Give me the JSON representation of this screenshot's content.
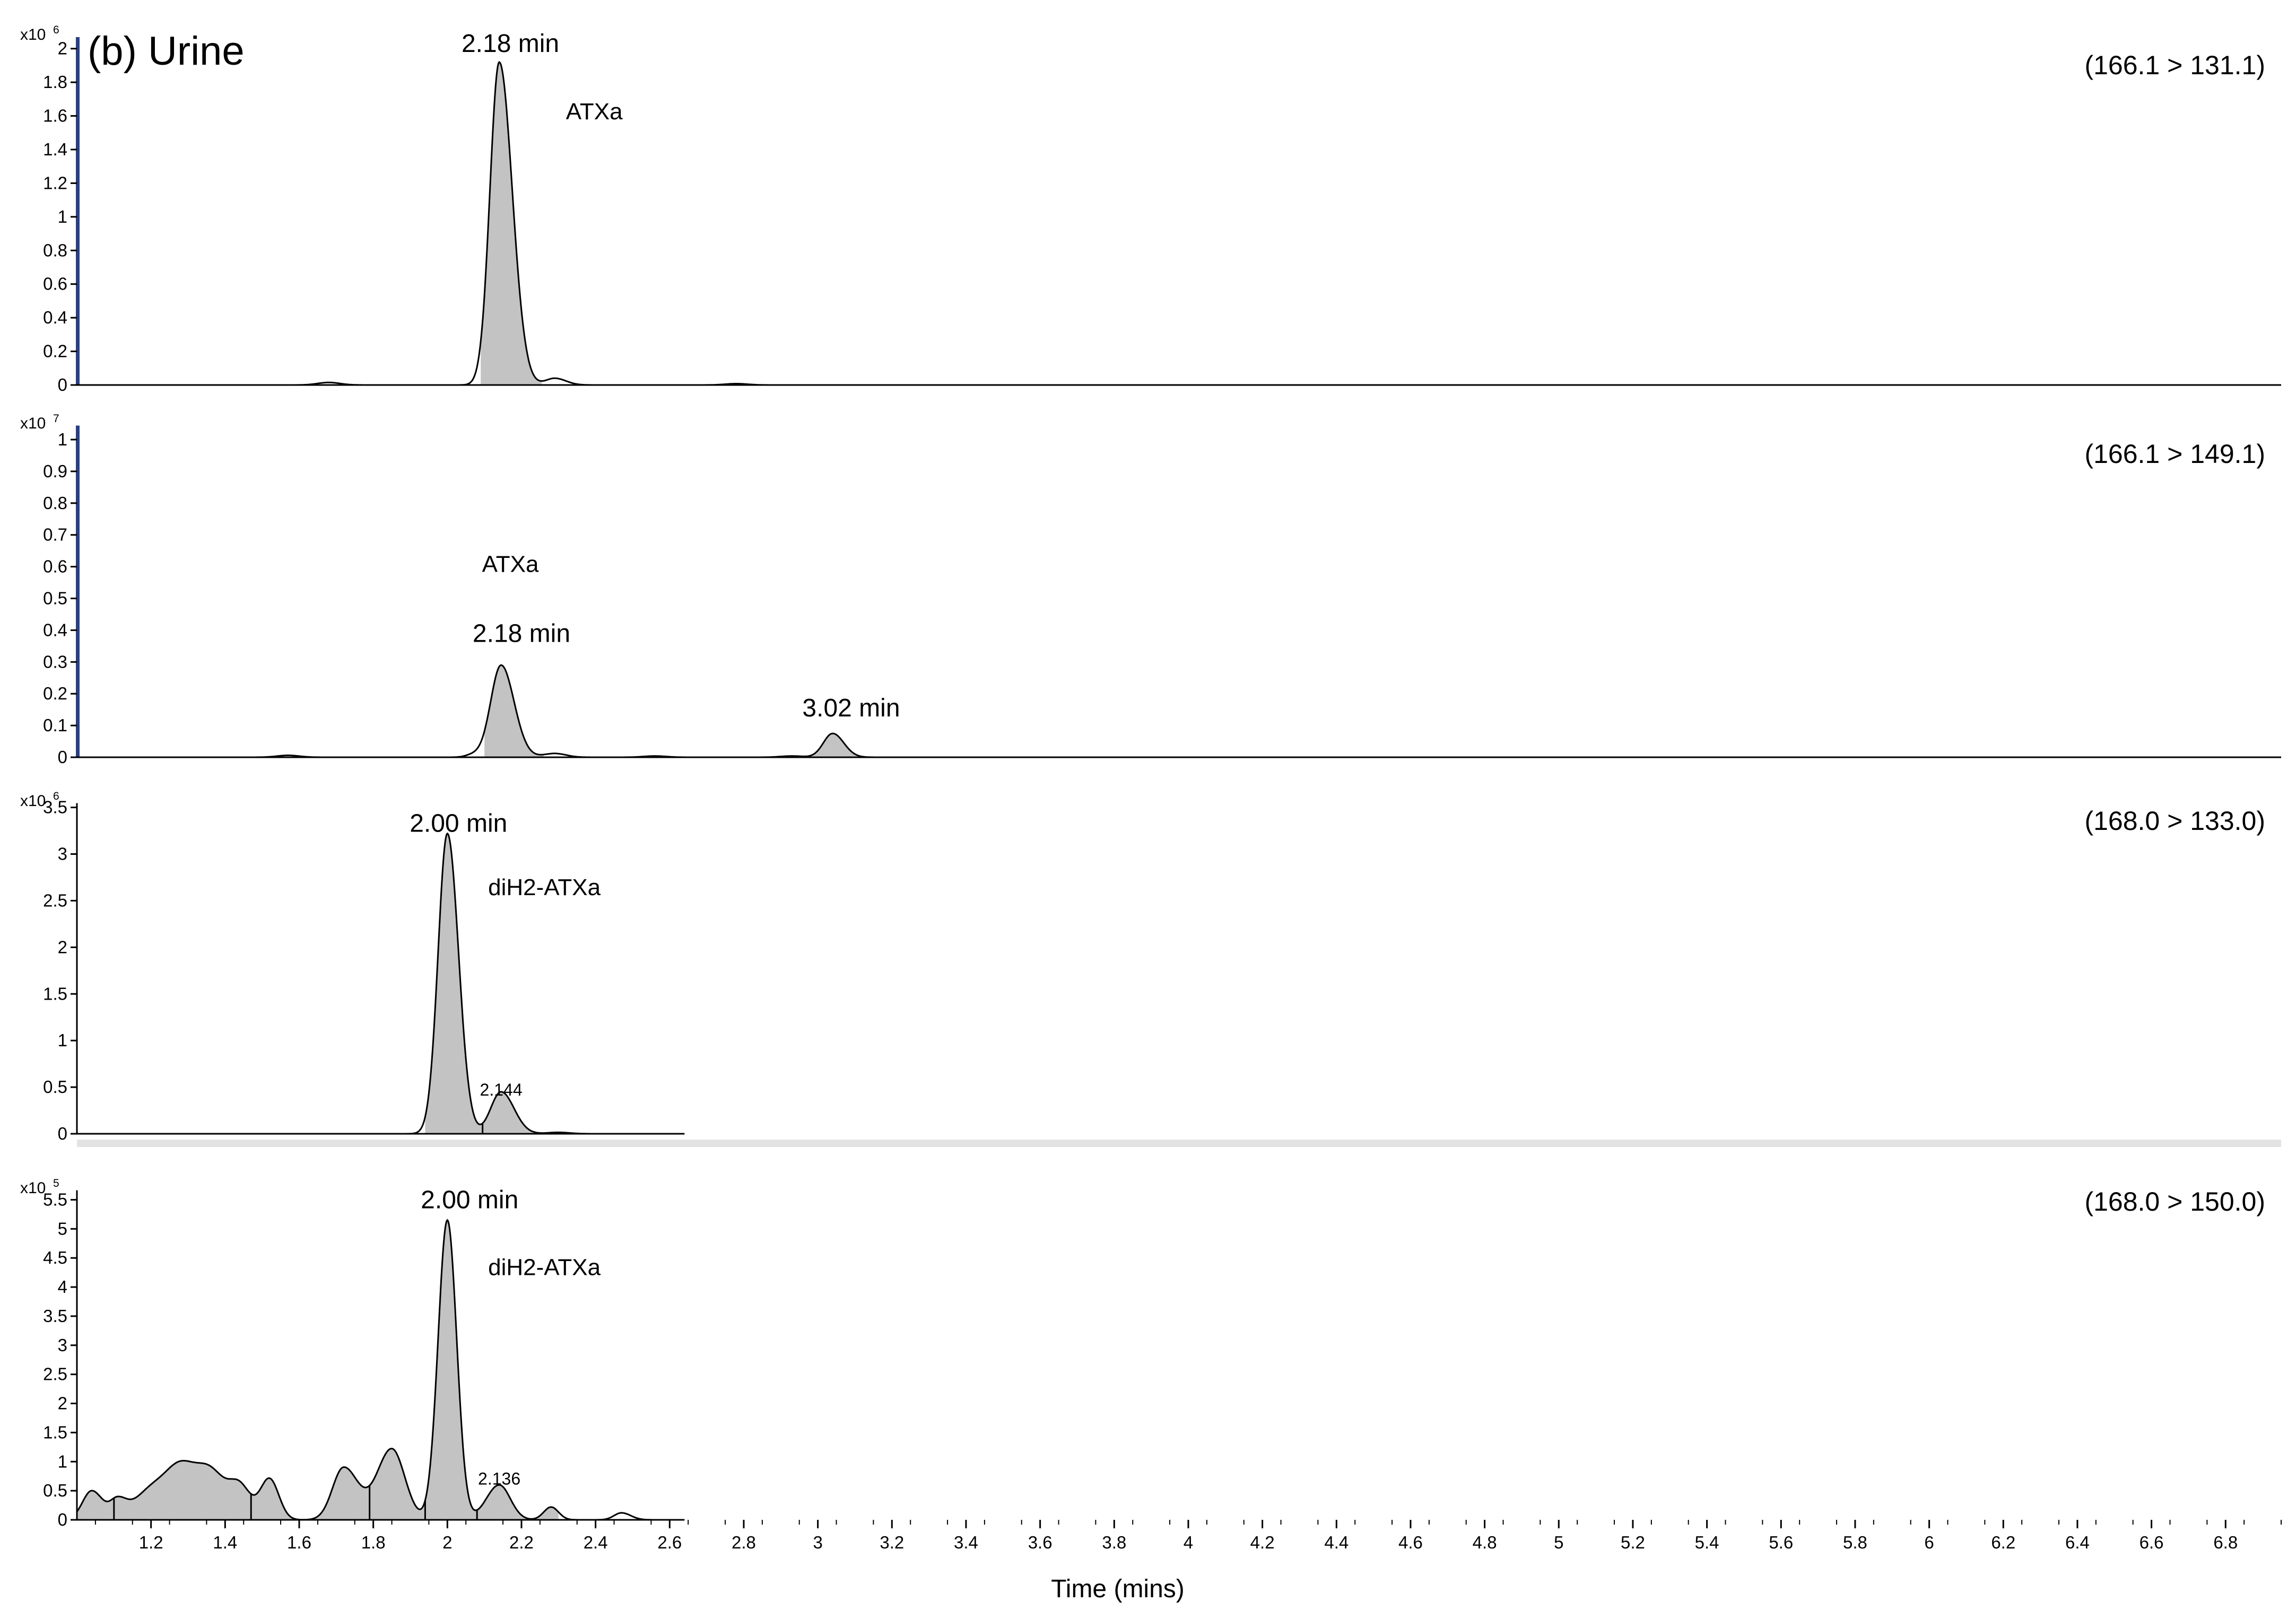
{
  "figure": {
    "title": "(b) Urine",
    "xlabel": "Time (mins)"
  },
  "colors": {
    "axis": "#000000",
    "peak_fill": "#c3c3c3",
    "left_marker": "#2b3f7d",
    "separator": "#e3e3e3"
  },
  "chart_data": [
    {
      "type": "line",
      "transition": "(166.1 > 131.1)",
      "y_exponent_label": "x10",
      "y_exponent": "6",
      "ylim": [
        0,
        2.1
      ],
      "yticks": [
        0,
        0.2,
        0.4,
        0.6,
        0.8,
        1,
        1.2,
        1.4,
        1.6,
        1.8,
        2
      ],
      "ytick_labels": [
        "0",
        "0.2",
        "0.4",
        "0.6",
        "0.8",
        "1",
        "1.2",
        "1.4",
        "1.6",
        "1.8",
        "2"
      ],
      "xlim": [
        1.0,
        6.95
      ],
      "x_end": 6.95,
      "left_marker": true,
      "shows_x_labels": false,
      "peaks": [
        {
          "x": 1.68,
          "h": 0.015,
          "wl": 0.03,
          "wr": 0.03
        },
        {
          "x": 2.14,
          "h": 1.92,
          "wl": 0.025,
          "wr": 0.035
        },
        {
          "x": 2.29,
          "h": 0.04,
          "wl": 0.025,
          "wr": 0.03
        },
        {
          "x": 2.78,
          "h": 0.008,
          "wl": 0.03,
          "wr": 0.03
        }
      ],
      "shaded": [
        [
          2.09,
          2.255
        ]
      ],
      "dividers": [],
      "annotations": [
        {
          "text": "2.18 min",
          "x": 2.17,
          "y": 2.03,
          "size": "large"
        },
        {
          "text": "ATXa",
          "x": 2.32,
          "y": 1.63,
          "size": "medium",
          "anchor": "start"
        }
      ]
    },
    {
      "type": "line",
      "transition": "(166.1 > 149.1)",
      "y_exponent_label": "x10",
      "y_exponent": "7",
      "ylim": [
        0,
        1.06
      ],
      "yticks": [
        0,
        0.1,
        0.2,
        0.3,
        0.4,
        0.5,
        0.6,
        0.7,
        0.8,
        0.9,
        1
      ],
      "ytick_labels": [
        "0",
        "0.1",
        "0.2",
        "0.3",
        "0.4",
        "0.5",
        "0.6",
        "0.7",
        "0.8",
        "0.9",
        "1"
      ],
      "xlim": [
        1.0,
        6.95
      ],
      "x_end": 6.95,
      "left_marker": true,
      "shows_x_labels": false,
      "peaks": [
        {
          "x": 1.57,
          "h": 0.006,
          "wl": 0.03,
          "wr": 0.03
        },
        {
          "x": 2.07,
          "h": 0.008,
          "wl": 0.02,
          "wr": 0.02
        },
        {
          "x": 2.145,
          "h": 0.29,
          "wl": 0.028,
          "wr": 0.035
        },
        {
          "x": 2.29,
          "h": 0.012,
          "wl": 0.03,
          "wr": 0.03
        },
        {
          "x": 2.56,
          "h": 0.004,
          "wl": 0.03,
          "wr": 0.03
        },
        {
          "x": 2.93,
          "h": 0.004,
          "wl": 0.03,
          "wr": 0.03
        },
        {
          "x": 3.04,
          "h": 0.075,
          "wl": 0.025,
          "wr": 0.03
        }
      ],
      "shaded": [
        [
          2.1,
          2.26
        ],
        [
          2.98,
          3.14
        ]
      ],
      "dividers": [],
      "annotations": [
        {
          "text": "ATXa",
          "x": 2.17,
          "y": 0.61,
          "size": "medium"
        },
        {
          "text": "2.18 min",
          "x": 2.2,
          "y": 0.39,
          "size": "large"
        },
        {
          "text": "3.02 min",
          "x": 3.09,
          "y": 0.155,
          "size": "large"
        }
      ]
    },
    {
      "type": "line",
      "transition": "(168.0 > 133.0)",
      "y_exponent_label": "x10",
      "y_exponent": "6",
      "ylim": [
        0,
        3.6
      ],
      "yticks": [
        0,
        0.5,
        1,
        1.5,
        2,
        2.5,
        3,
        3.5
      ],
      "ytick_labels": [
        "0",
        "0.5",
        "1",
        "1.5",
        "2",
        "2.5",
        "3",
        "3.5"
      ],
      "xlim": [
        1.0,
        6.95
      ],
      "x_end": 2.64,
      "left_marker": false,
      "shows_x_labels": false,
      "peaks": [
        {
          "x": 2.0,
          "h": 3.22,
          "wl": 0.025,
          "wr": 0.03
        },
        {
          "x": 2.145,
          "h": 0.45,
          "wl": 0.028,
          "wr": 0.035
        },
        {
          "x": 2.3,
          "h": 0.015,
          "wl": 0.03,
          "wr": 0.03
        }
      ],
      "shaded": [
        [
          1.94,
          2.27
        ]
      ],
      "dividers": [
        2.095
      ],
      "annotations": [
        {
          "text": "2.00 min",
          "x": 2.03,
          "y": 3.33,
          "size": "large"
        },
        {
          "text": "diH2-ATXa",
          "x": 2.11,
          "y": 2.65,
          "size": "medium",
          "anchor": "start"
        },
        {
          "text": "2.144",
          "x": 2.145,
          "y": 0.5,
          "size": "small"
        }
      ]
    },
    {
      "type": "line",
      "transition": "(168.0 > 150.0)",
      "y_exponent_label": "x10",
      "y_exponent": "5",
      "ylim": [
        0,
        5.75
      ],
      "yticks": [
        0,
        0.5,
        1,
        1.5,
        2,
        2.5,
        3,
        3.5,
        4,
        4.5,
        5,
        5.5
      ],
      "ytick_labels": [
        "0",
        "0.5",
        "1",
        "1.5",
        "2",
        "2.5",
        "3",
        "3.5",
        "4",
        "4.5",
        "5",
        "5.5"
      ],
      "xlim": [
        1.0,
        6.95
      ],
      "x_end": 2.64,
      "left_marker": false,
      "shows_x_labels": true,
      "peaks": [
        {
          "x": 1.04,
          "h": 0.5,
          "wl": 0.025,
          "wr": 0.03
        },
        {
          "x": 1.11,
          "h": 0.3,
          "wl": 0.02,
          "wr": 0.025
        },
        {
          "x": 1.2,
          "h": 0.5,
          "wl": 0.045,
          "wr": 0.045
        },
        {
          "x": 1.28,
          "h": 0.8,
          "wl": 0.04,
          "wr": 0.04
        },
        {
          "x": 1.36,
          "h": 0.8,
          "wl": 0.04,
          "wr": 0.04
        },
        {
          "x": 1.44,
          "h": 0.55,
          "wl": 0.03,
          "wr": 0.03
        },
        {
          "x": 1.52,
          "h": 0.7,
          "wl": 0.025,
          "wr": 0.025
        },
        {
          "x": 1.72,
          "h": 0.9,
          "wl": 0.03,
          "wr": 0.04
        },
        {
          "x": 1.85,
          "h": 1.22,
          "wl": 0.04,
          "wr": 0.035
        },
        {
          "x": 2.0,
          "h": 5.15,
          "wl": 0.025,
          "wr": 0.025
        },
        {
          "x": 2.14,
          "h": 0.6,
          "wl": 0.035,
          "wr": 0.03
        },
        {
          "x": 2.28,
          "h": 0.22,
          "wl": 0.02,
          "wr": 0.02
        },
        {
          "x": 2.47,
          "h": 0.12,
          "wl": 0.02,
          "wr": 0.025
        }
      ],
      "shaded": [
        [
          1.0,
          2.3
        ]
      ],
      "dividers": [
        1.1,
        1.47,
        1.79,
        1.94,
        2.08
      ],
      "annotations": [
        {
          "text": "2.00 min",
          "x": 2.06,
          "y": 5.5,
          "size": "large"
        },
        {
          "text": "diH2-ATXa",
          "x": 2.11,
          "y": 4.35,
          "size": "medium",
          "anchor": "start"
        },
        {
          "text": "2.136",
          "x": 2.14,
          "y": 0.75,
          "size": "small"
        }
      ],
      "xticks": [
        1.2,
        1.4,
        1.6,
        1.8,
        2,
        2.2,
        2.4,
        2.6,
        2.8,
        3,
        3.2,
        3.4,
        3.6,
        3.8,
        4,
        4.2,
        4.4,
        4.6,
        4.8,
        5,
        5.2,
        5.4,
        5.6,
        5.8,
        6,
        6.2,
        6.4,
        6.6,
        6.8
      ],
      "xtick_labels": [
        "1.2",
        "1.4",
        "1.6",
        "1.8",
        "2",
        "2.2",
        "2.4",
        "2.6",
        "2.8",
        "3",
        "3.2",
        "3.4",
        "3.6",
        "3.8",
        "4",
        "4.2",
        "4.4",
        "4.6",
        "4.8",
        "5",
        "5.2",
        "5.4",
        "5.6",
        "5.8",
        "6",
        "6.2",
        "6.4",
        "6.6",
        "6.8"
      ]
    }
  ]
}
